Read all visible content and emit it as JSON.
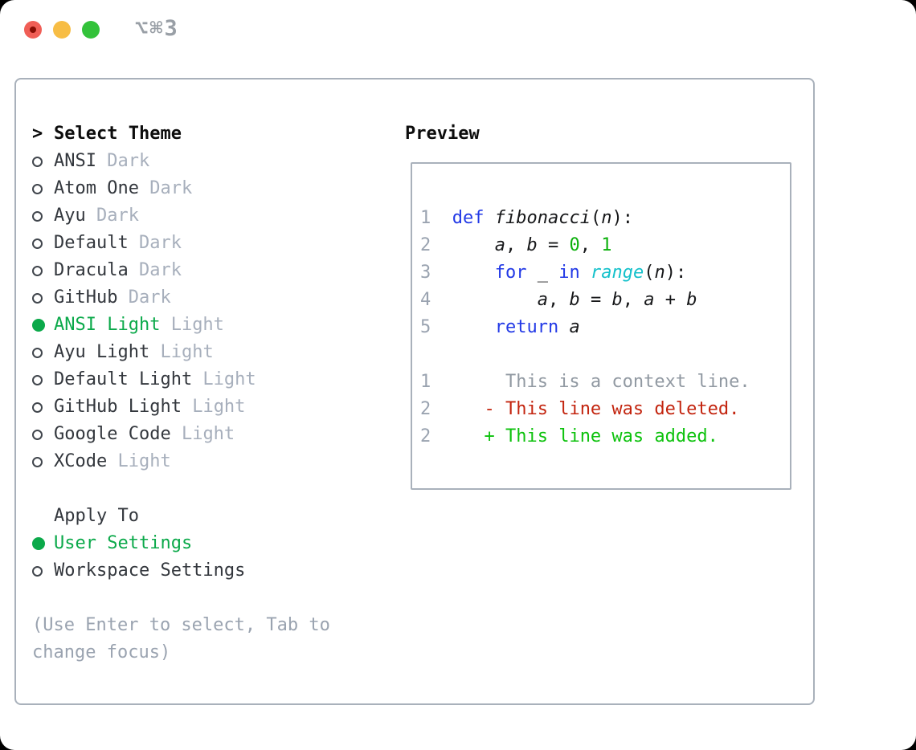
{
  "titlebar": {
    "title": "⌥⌘3"
  },
  "colors": {
    "accent_green": "#0ba94a",
    "border_gray": "#a9b1bb",
    "muted_gray": "#a7afbc",
    "hint_gray": "#9aa3b0",
    "keyword_blue": "#2239e6",
    "builtin_cyan": "#14c1cb",
    "number_green": "#0bb00b",
    "diff_deleted_red": "#c3250f",
    "diff_added_green": "#0dc20d",
    "traffic_red": "#f05e56",
    "traffic_yellow": "#f7bd45",
    "traffic_green": "#33c23a"
  },
  "theme_picker": {
    "prompt": ">",
    "header": "Select Theme",
    "items": [
      {
        "name": "ANSI",
        "variant": "Dark",
        "selected": false
      },
      {
        "name": "Atom One",
        "variant": "Dark",
        "selected": false
      },
      {
        "name": "Ayu",
        "variant": "Dark",
        "selected": false
      },
      {
        "name": "Default",
        "variant": "Dark",
        "selected": false
      },
      {
        "name": "Dracula",
        "variant": "Dark",
        "selected": false
      },
      {
        "name": "GitHub",
        "variant": "Dark",
        "selected": false
      },
      {
        "name": "ANSI Light",
        "variant": "Light",
        "selected": true
      },
      {
        "name": "Ayu Light",
        "variant": "Light",
        "selected": false
      },
      {
        "name": "Default Light",
        "variant": "Light",
        "selected": false
      },
      {
        "name": "GitHub Light",
        "variant": "Light",
        "selected": false
      },
      {
        "name": "Google Code",
        "variant": "Light",
        "selected": false
      },
      {
        "name": "XCode",
        "variant": "Light",
        "selected": false
      }
    ],
    "apply_to": {
      "label": "Apply To",
      "options": [
        {
          "label": "User Settings",
          "selected": true
        },
        {
          "label": "Workspace Settings",
          "selected": false
        }
      ]
    },
    "hint": "(Use Enter to select, Tab to change focus)"
  },
  "preview": {
    "label": "Preview",
    "lines": [
      {
        "num": "1",
        "segments": [
          [
            "  ",
            "plain"
          ],
          [
            "def",
            "kw"
          ],
          [
            " ",
            "plain"
          ],
          [
            "fibonacci",
            "fn"
          ],
          [
            "(",
            "plain"
          ],
          [
            "n",
            "var"
          ],
          [
            "):",
            "plain"
          ]
        ]
      },
      {
        "num": "2",
        "segments": [
          [
            "      ",
            "plain"
          ],
          [
            "a",
            "var"
          ],
          [
            ", ",
            "plain"
          ],
          [
            "b",
            "var"
          ],
          [
            " = ",
            "plain"
          ],
          [
            "0",
            "num"
          ],
          [
            ", ",
            "plain"
          ],
          [
            "1",
            "num"
          ]
        ]
      },
      {
        "num": "3",
        "segments": [
          [
            "      ",
            "plain"
          ],
          [
            "for",
            "kw"
          ],
          [
            " _ ",
            "plain"
          ],
          [
            "in",
            "kw"
          ],
          [
            " ",
            "plain"
          ],
          [
            "range",
            "builtin"
          ],
          [
            "(",
            "plain"
          ],
          [
            "n",
            "var"
          ],
          [
            "):",
            "plain"
          ]
        ]
      },
      {
        "num": "4",
        "segments": [
          [
            "          ",
            "plain"
          ],
          [
            "a",
            "var"
          ],
          [
            ", ",
            "plain"
          ],
          [
            "b",
            "var"
          ],
          [
            " = ",
            "plain"
          ],
          [
            "b",
            "var"
          ],
          [
            ", ",
            "plain"
          ],
          [
            "a",
            "var"
          ],
          [
            " + ",
            "plain"
          ],
          [
            "b",
            "var"
          ]
        ]
      },
      {
        "num": "5",
        "segments": [
          [
            "      ",
            "plain"
          ],
          [
            "return",
            "kw"
          ],
          [
            " ",
            "plain"
          ],
          [
            "a",
            "var"
          ]
        ]
      },
      {
        "num": "",
        "segments": []
      },
      {
        "num": "1",
        "segments": [
          [
            "       This is a context line.",
            "ctx"
          ]
        ]
      },
      {
        "num": "2",
        "segments": [
          [
            "     ",
            "plain"
          ],
          [
            "- This line was deleted.",
            "del"
          ]
        ]
      },
      {
        "num": "2",
        "segments": [
          [
            "     ",
            "plain"
          ],
          [
            "+ This line was added.",
            "add"
          ]
        ]
      }
    ]
  }
}
